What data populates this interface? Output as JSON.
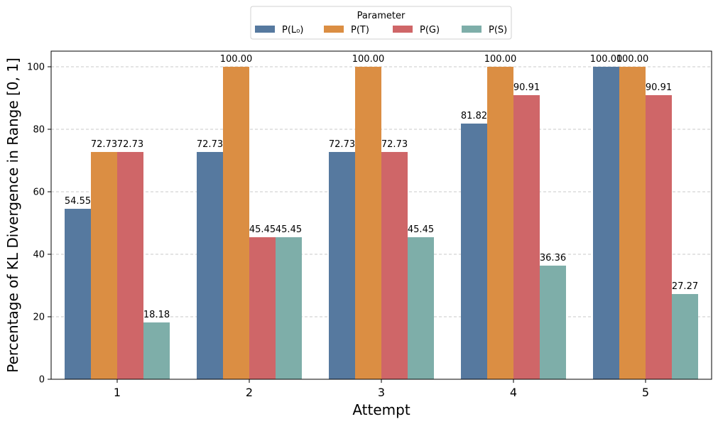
{
  "chart_data": {
    "type": "bar",
    "title": "",
    "xlabel": "Attempt",
    "ylabel": "Percentage of KL Divergence in Range [0, 1]",
    "categories": [
      "1",
      "2",
      "3",
      "4",
      "5"
    ],
    "yticks": [
      "0",
      "20",
      "40",
      "60",
      "80",
      "100"
    ],
    "ylim": [
      0,
      105
    ],
    "grid": "y-dashed",
    "legend": {
      "title": "Parameter",
      "placement": "top-center-outside"
    },
    "series": [
      {
        "name": "P(L₀)",
        "color": "#56799f",
        "values": [
          54.55,
          72.73,
          72.73,
          81.82,
          100.0
        ],
        "labels": [
          "54.55",
          "72.73",
          "72.73",
          "81.82",
          "100.00"
        ]
      },
      {
        "name": "P(T)",
        "color": "#db8e43",
        "values": [
          72.73,
          100.0,
          100.0,
          100.0,
          100.0
        ],
        "labels": [
          "72.73",
          "100.00",
          "100.00",
          "100.00",
          "100.00"
        ]
      },
      {
        "name": "P(G)",
        "color": "#cf6668",
        "values": [
          72.73,
          45.45,
          72.73,
          90.91,
          90.91
        ],
        "labels": [
          "72.73",
          "45.45",
          "72.73",
          "90.91",
          "90.91"
        ]
      },
      {
        "name": "P(S)",
        "color": "#7eaea9",
        "values": [
          18.18,
          45.45,
          45.45,
          36.36,
          27.27
        ],
        "labels": [
          "18.18",
          "45.45",
          "45.45",
          "36.36",
          "27.27"
        ]
      }
    ]
  }
}
